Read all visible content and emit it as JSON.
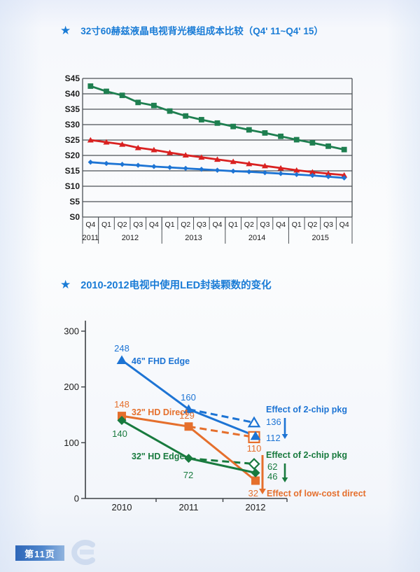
{
  "page": {
    "badge_label": "第11页"
  },
  "sections": [
    {
      "bullet": "★",
      "title": "32寸60赫兹液晶电视背光模组成本比较（Q4' 11~Q4' 15）"
    },
    {
      "bullet": "★",
      "title": "2010-2012电视中使用LED封装颗数的变化"
    }
  ],
  "chart_data": [
    {
      "type": "line",
      "title": "32寸60赫兹液晶电视背光模组成本比较（Q4' 11~Q4' 15）",
      "ylabel_prefix": "S",
      "ylim": [
        0,
        45
      ],
      "ytick_step": 5,
      "grid": true,
      "legend": "none",
      "categories": [
        "Q4",
        "Q1",
        "Q2",
        "Q3",
        "Q4",
        "Q1",
        "Q2",
        "Q3",
        "Q4",
        "Q1",
        "Q2",
        "Q3",
        "Q4",
        "Q1",
        "Q2",
        "Q3",
        "Q4"
      ],
      "year_groups": [
        {
          "label": "2011",
          "span": 1
        },
        {
          "label": "2012",
          "span": 4
        },
        {
          "label": "2013",
          "span": 4
        },
        {
          "label": "2014",
          "span": 4
        },
        {
          "label": "2015",
          "span": 4
        }
      ],
      "series": [
        {
          "name": "green-square",
          "color": "#1e7f50",
          "marker": "square",
          "values": [
            42.5,
            40.8,
            39.5,
            37.2,
            36.2,
            34.4,
            32.8,
            31.6,
            30.5,
            29.4,
            28.3,
            27.3,
            26.2,
            25.1,
            24.1,
            23.0,
            21.9
          ]
        },
        {
          "name": "red-triangle",
          "color": "#d92121",
          "marker": "triangle",
          "values": [
            25.0,
            24.3,
            23.6,
            22.5,
            21.8,
            20.9,
            20.1,
            19.4,
            18.7,
            18.0,
            17.3,
            16.6,
            15.9,
            15.2,
            14.6,
            14.1,
            13.6
          ]
        },
        {
          "name": "blue-diamond",
          "color": "#1d74d4",
          "marker": "diamond",
          "values": [
            17.8,
            17.4,
            17.1,
            16.8,
            16.4,
            16.1,
            15.8,
            15.5,
            15.2,
            14.9,
            14.7,
            14.4,
            14.1,
            13.8,
            13.5,
            13.1,
            12.7
          ]
        }
      ]
    },
    {
      "type": "line",
      "title": "2010-2012电视中使用LED封装颗数的变化",
      "x": [
        "2010",
        "2011",
        "2012"
      ],
      "ylim": [
        0,
        300
      ],
      "yticks": [
        0,
        100,
        200,
        300
      ],
      "grid": false,
      "series": [
        {
          "name": "46\" FHD Edge",
          "color": "#1d74d4",
          "marker": "triangle",
          "values": [
            248,
            160,
            112
          ],
          "alt_2012": 136,
          "point_labels": [
            "248",
            "160"
          ]
        },
        {
          "name": "32\" HD Direct",
          "color": "#e56f2c",
          "marker": "square",
          "values": [
            148,
            129,
            32
          ],
          "alt_2012": 110,
          "point_labels": [
            "148",
            "129"
          ]
        },
        {
          "name": "32\" HD Edge",
          "color": "#187a3e",
          "marker": "diamond",
          "values": [
            140,
            72,
            46
          ],
          "alt_2012": 62,
          "point_labels": [
            "140",
            "72"
          ]
        }
      ],
      "annotations": [
        {
          "text": "Effect of 2-chip pkg",
          "color": "#1d74d4",
          "values": [
            "136",
            "112"
          ]
        },
        {
          "text": "Effect of 2-chip pkg",
          "color": "#187a3e",
          "values": [
            "62",
            "46"
          ]
        },
        {
          "text": "Effect of low-cost direct",
          "color": "#e56f2c",
          "values": [
            "110",
            "32"
          ]
        }
      ]
    }
  ]
}
